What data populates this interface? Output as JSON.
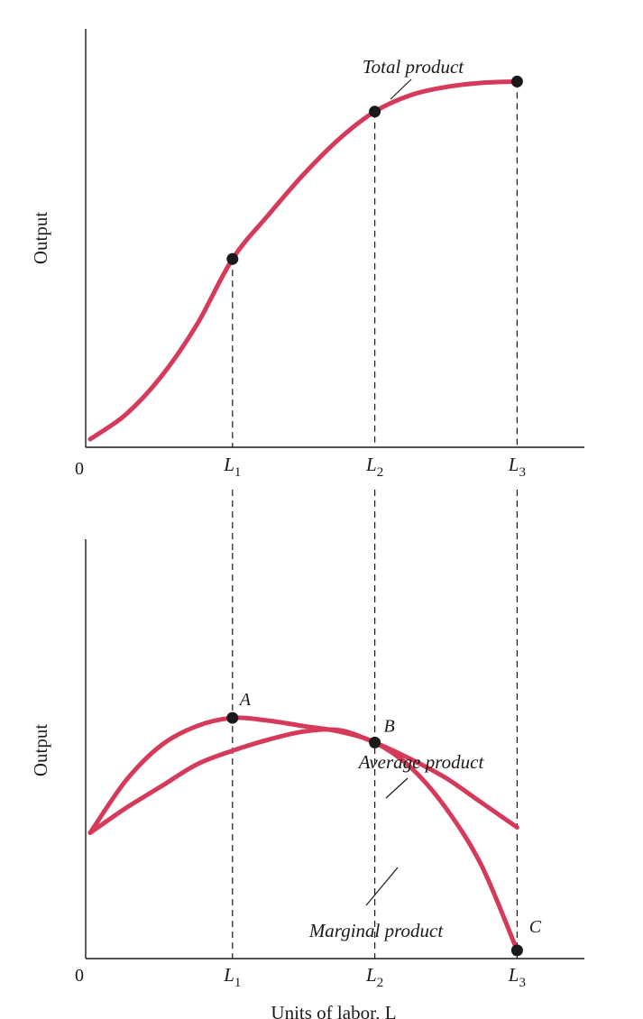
{
  "colors": {
    "curve": "#d63a5a",
    "axis": "#1a1a1a",
    "point": "#1a1a1a"
  },
  "chart_data": [
    {
      "type": "line",
      "panel": "top",
      "ylabel": "Output",
      "origin_label": "0",
      "x_ticks": [
        {
          "base": "L",
          "sub": "1",
          "x": 1
        },
        {
          "base": "L",
          "sub": "2",
          "x": 2
        },
        {
          "base": "L",
          "sub": "3",
          "x": 3
        }
      ],
      "series": [
        {
          "name": "Total product",
          "x": [
            0,
            0.25,
            0.5,
            0.75,
            1,
            1.25,
            1.5,
            1.75,
            2,
            2.25,
            2.5,
            2.75,
            3
          ],
          "y": [
            0.3,
            1.2,
            2.6,
            4.5,
            6.9,
            8.5,
            10,
            11.3,
            12.3,
            12.9,
            13.2,
            13.35,
            13.4
          ]
        }
      ],
      "points": [
        {
          "x": 1,
          "y": 6.9
        },
        {
          "x": 2,
          "y": 12.3
        },
        {
          "x": 3,
          "y": 13.4
        }
      ],
      "xlim": [
        0,
        3.4
      ],
      "ylim": [
        0,
        15
      ]
    },
    {
      "type": "line",
      "panel": "bottom",
      "ylabel": "Output",
      "origin_label": "0",
      "xlabel": "Units of labor, L",
      "x_ticks": [
        {
          "base": "L",
          "sub": "1",
          "x": 1
        },
        {
          "base": "L",
          "sub": "2",
          "x": 2
        },
        {
          "base": "L",
          "sub": "3",
          "x": 3
        }
      ],
      "series": [
        {
          "name": "Marginal product",
          "x": [
            0,
            0.25,
            0.5,
            0.75,
            1,
            1.25,
            1.5,
            1.75,
            2,
            2.25,
            2.5,
            2.75,
            3
          ],
          "y": [
            4.6,
            6.5,
            7.8,
            8.5,
            8.8,
            8.7,
            8.5,
            8.3,
            7.9,
            7.0,
            5.5,
            3.4,
            0.3
          ]
        },
        {
          "name": "Average product",
          "x": [
            0,
            0.25,
            0.5,
            0.75,
            1,
            1.25,
            1.5,
            1.75,
            2,
            2.25,
            2.5,
            2.75,
            3
          ],
          "y": [
            4.6,
            5.5,
            6.3,
            7.1,
            7.6,
            8.0,
            8.3,
            8.35,
            7.9,
            7.3,
            6.6,
            5.7,
            4.8
          ]
        }
      ],
      "points": [
        {
          "label": "A",
          "x": 1,
          "y": 8.8
        },
        {
          "label": "B",
          "x": 2,
          "y": 7.9
        },
        {
          "label": "C",
          "x": 3,
          "y": 0.3
        }
      ],
      "xlim": [
        0,
        3.4
      ],
      "ylim": [
        0,
        15
      ]
    }
  ]
}
